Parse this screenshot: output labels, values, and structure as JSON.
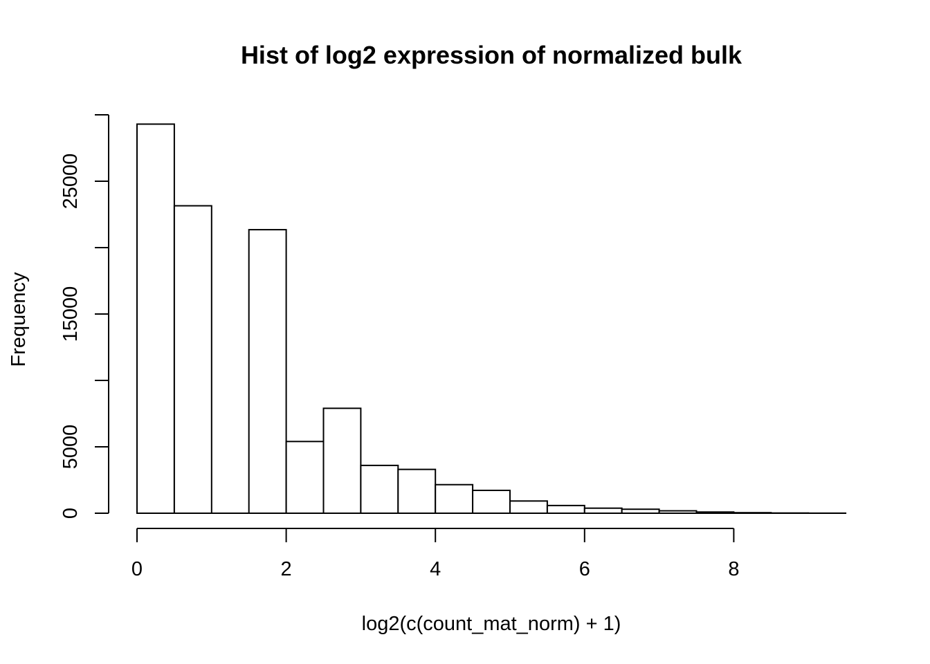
{
  "chart_data": {
    "type": "bar",
    "title": "Hist of log2 expression of normalized bulk",
    "xlabel": "log2(c(count_mat_norm) + 1)",
    "ylabel": "Frequency",
    "bin_width": 0.5,
    "bins": [
      {
        "start": 0.0,
        "end": 0.5,
        "count": 29300
      },
      {
        "start": 0.5,
        "end": 1.0,
        "count": 23150
      },
      {
        "start": 1.0,
        "end": 1.5,
        "count": 0
      },
      {
        "start": 1.5,
        "end": 2.0,
        "count": 21350
      },
      {
        "start": 2.0,
        "end": 2.5,
        "count": 5400
      },
      {
        "start": 2.5,
        "end": 3.0,
        "count": 7900
      },
      {
        "start": 3.0,
        "end": 3.5,
        "count": 3600
      },
      {
        "start": 3.5,
        "end": 4.0,
        "count": 3300
      },
      {
        "start": 4.0,
        "end": 4.5,
        "count": 2150
      },
      {
        "start": 4.5,
        "end": 5.0,
        "count": 1720
      },
      {
        "start": 5.0,
        "end": 5.5,
        "count": 920
      },
      {
        "start": 5.5,
        "end": 6.0,
        "count": 580
      },
      {
        "start": 6.0,
        "end": 6.5,
        "count": 380
      },
      {
        "start": 6.5,
        "end": 7.0,
        "count": 300
      },
      {
        "start": 7.0,
        "end": 7.5,
        "count": 180
      },
      {
        "start": 7.5,
        "end": 8.0,
        "count": 90
      },
      {
        "start": 8.0,
        "end": 8.5,
        "count": 40
      },
      {
        "start": 8.5,
        "end": 9.0,
        "count": 15
      },
      {
        "start": 9.0,
        "end": 9.5,
        "count": 5
      }
    ],
    "xlim": [
      0,
      9.5
    ],
    "ylim": [
      0,
      30000
    ],
    "x_ticks": [
      0,
      2,
      4,
      6,
      8
    ],
    "x_tick_labels": [
      "0",
      "2",
      "4",
      "6",
      "8"
    ],
    "y_ticks": [
      0,
      5000,
      10000,
      15000,
      20000,
      25000,
      30000
    ],
    "y_tick_labels": [
      "0",
      "5000",
      "",
      "15000",
      "",
      "25000",
      ""
    ],
    "grid": false,
    "legend": "none"
  }
}
